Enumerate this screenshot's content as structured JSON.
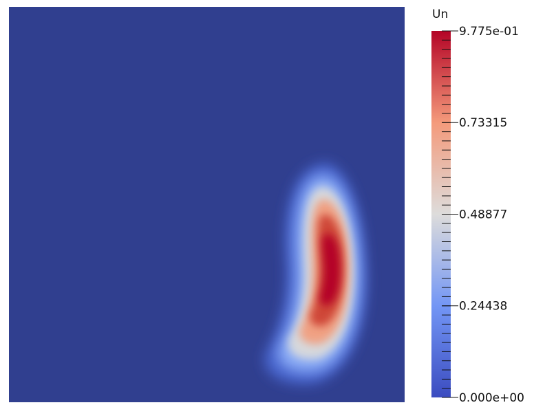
{
  "chart_data": {
    "type": "heatmap",
    "field_name": "Un",
    "range": [
      0.0,
      0.9775
    ],
    "colormap": "Cool to Warm",
    "colormap_stops": [
      {
        "t": 0.0,
        "color": "#3b4cc0"
      },
      {
        "t": 0.25,
        "color": "#7396f5"
      },
      {
        "t": 0.5,
        "color": "#dddcdb"
      },
      {
        "t": 0.75,
        "color": "#f49a7b"
      },
      {
        "t": 1.0,
        "color": "#b40426"
      }
    ],
    "background_color": "#303f8f",
    "colorbar": {
      "title": "Un",
      "tick_labels": [
        {
          "value": 0.9775,
          "label": "9.775e-01"
        },
        {
          "value": 0.73315,
          "label": "0.73315"
        },
        {
          "value": 0.48877,
          "label": "0.48877"
        },
        {
          "value": 0.24438,
          "label": "0.24438"
        },
        {
          "value": 0.0,
          "label": "0.000e+00"
        }
      ],
      "minor_tick_count": 40
    },
    "field": {
      "peak_value": 0.9775,
      "peak_position": [
        0.805,
        0.35
      ],
      "shape": "crescent",
      "description": "single crescent-shaped blob in the lower-right region"
    }
  }
}
